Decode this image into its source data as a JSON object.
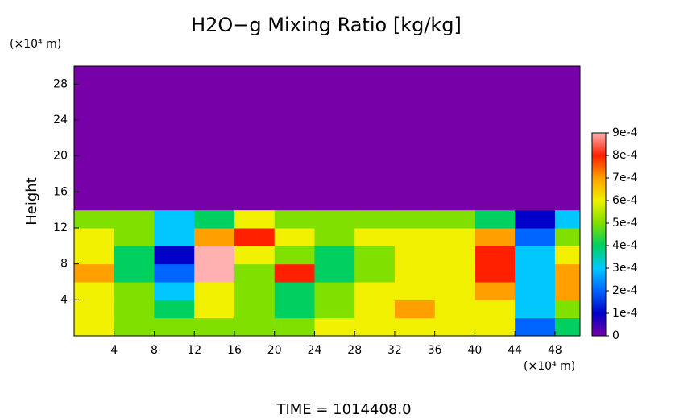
{
  "chart_data": {
    "type": "heatmap",
    "title": "H2O−g Mixing Ratio [kg/kg]",
    "y_unit_label": "(×10⁴ m)",
    "x_unit_label": "(×10⁴ m)",
    "y_label": "Height",
    "footer": "TIME = 1014408.0",
    "x_edges": [
      0,
      4,
      8,
      12,
      16,
      20,
      24,
      28,
      32,
      36,
      40,
      44,
      48,
      50.5
    ],
    "y_edges": [
      0,
      2,
      4,
      6,
      8,
      10,
      12,
      14,
      30
    ],
    "values": [
      [
        0.0006,
        0.0005,
        0.0005,
        0.0005,
        0.0005,
        0.0005,
        0.0006,
        0.0006,
        0.0006,
        0.0006,
        0.0006,
        0.0002,
        0.0004
      ],
      [
        0.0006,
        0.0005,
        0.0004,
        0.0006,
        0.0005,
        0.0004,
        0.0005,
        0.0006,
        0.0007,
        0.0006,
        0.0006,
        0.0003,
        0.0005
      ],
      [
        0.0006,
        0.0005,
        0.0003,
        0.0006,
        0.0005,
        0.0004,
        0.0005,
        0.0006,
        0.0006,
        0.0006,
        0.0007,
        0.0003,
        0.0007
      ],
      [
        0.0007,
        0.0004,
        0.0002,
        0.0009,
        0.0005,
        0.0008,
        0.0004,
        0.0005,
        0.0006,
        0.0006,
        0.0008,
        0.0003,
        0.0007
      ],
      [
        0.0006,
        0.0004,
        0.0001,
        0.0009,
        0.0006,
        0.0005,
        0.0004,
        0.0005,
        0.0006,
        0.0006,
        0.0008,
        0.0003,
        0.0006
      ],
      [
        0.0006,
        0.0005,
        0.0003,
        0.0007,
        0.0008,
        0.0006,
        0.0005,
        0.0006,
        0.0006,
        0.0006,
        0.0007,
        0.0002,
        0.0005
      ],
      [
        0.0005,
        0.0005,
        0.0003,
        0.0004,
        0.0006,
        0.0005,
        0.0005,
        0.0005,
        0.0005,
        0.0005,
        0.0004,
        0.0001,
        0.0003
      ],
      [
        0,
        0,
        0,
        0,
        0,
        0,
        0,
        0,
        0,
        0,
        0,
        0,
        0
      ]
    ],
    "xlim": [
      0,
      50.5
    ],
    "ylim": [
      0,
      30
    ],
    "xticks": [
      4,
      8,
      12,
      16,
      20,
      24,
      28,
      32,
      36,
      40,
      44,
      48
    ],
    "yticks": [
      4,
      8,
      12,
      16,
      20,
      24,
      28
    ],
    "clim": [
      0,
      0.0009
    ],
    "cticks": [
      0,
      {
        "value": 0.0001,
        "label": "1e-4"
      },
      {
        "value": 0.0002,
        "label": "2e-4"
      },
      {
        "value": 0.0003,
        "label": "3e-4"
      },
      {
        "value": 0.0004,
        "label": "4e-4"
      },
      {
        "value": 0.0005,
        "label": "5e-4"
      },
      {
        "value": 0.0006,
        "label": "6e-4"
      },
      {
        "value": 0.0007,
        "label": "7e-4"
      },
      {
        "value": 0.0008,
        "label": "8e-4"
      },
      {
        "value": 0.0009,
        "label": "9e-4"
      }
    ],
    "colormap": [
      "#7800a8",
      "#0000c8",
      "#0064ff",
      "#00c8ff",
      "#00d060",
      "#80e000",
      "#f0f000",
      "#ffa000",
      "#ff2000",
      "#ffb0b0"
    ]
  }
}
